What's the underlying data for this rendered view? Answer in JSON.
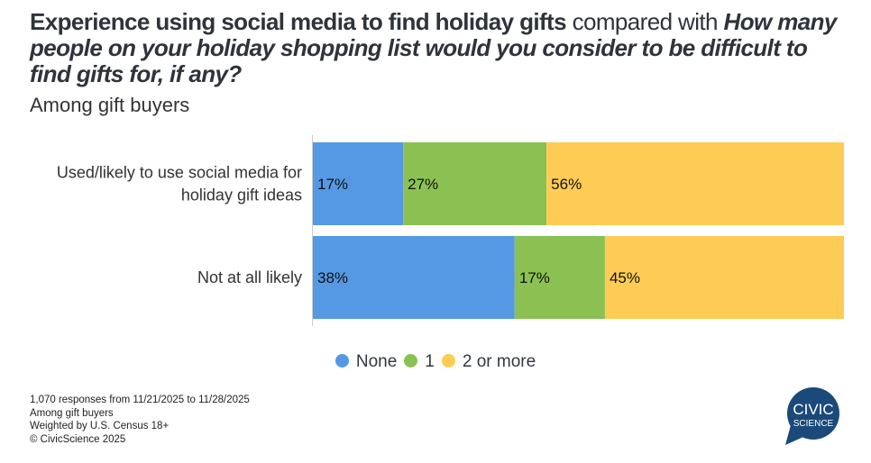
{
  "header": {
    "title_bold": "Experience using social media to find holiday gifts",
    "title_mid": " compared with ",
    "title_italic": "How many people on your holiday shopping list would you consider to be difficult to find gifts for, if any?",
    "subtitle": "Among gift buyers"
  },
  "chart_data": {
    "type": "bar",
    "stacked": true,
    "orientation": "horizontal",
    "categories": [
      "Used/likely to use social media for holiday gift ideas",
      "Not at all likely"
    ],
    "category_lines": [
      [
        "Used/likely to use social media for",
        "holiday gift ideas"
      ],
      [
        "Not at all likely"
      ]
    ],
    "series": [
      {
        "name": "None",
        "values": [
          17,
          38
        ],
        "color": "#5599e4"
      },
      {
        "name": "1",
        "values": [
          27,
          17
        ],
        "color": "#8bc152"
      },
      {
        "name": "2 or more",
        "values": [
          56,
          45
        ],
        "color": "#fecc55"
      }
    ],
    "xlim": [
      0,
      100
    ],
    "legend": "bottom-center",
    "unit": "%"
  },
  "footer": {
    "lines": [
      "1,070 responses from 11/21/2025 to 11/28/2025",
      "Among gift buyers",
      "Weighted by U.S. Census 18+",
      "© CivicScience 2025"
    ]
  },
  "logo": {
    "text1": "CIVIC",
    "text2": "SCIENCE",
    "color": "#1b4a7a"
  }
}
